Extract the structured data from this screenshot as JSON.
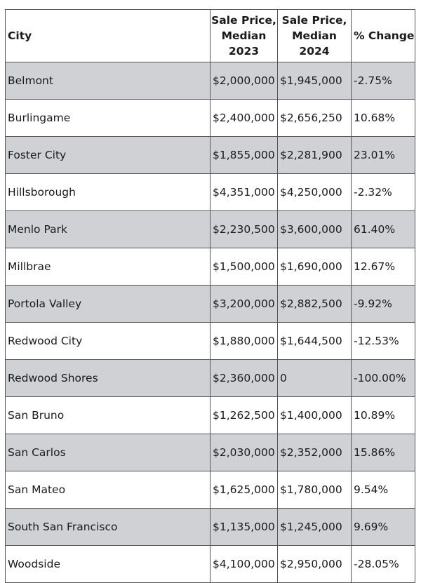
{
  "table": {
    "headers": {
      "city": "City",
      "price_2023": "Sale Price, Median 2023",
      "price_2024": "Sale Price, Median 2024",
      "change": "% Change"
    },
    "rows": [
      {
        "city": "Belmont",
        "price_2023": "$2,000,000",
        "price_2024": "$1,945,000",
        "change": "-2.75%"
      },
      {
        "city": "Burlingame",
        "price_2023": "$2,400,000",
        "price_2024": "$2,656,250",
        "change": "10.68%"
      },
      {
        "city": "Foster City",
        "price_2023": "$1,855,000",
        "price_2024": "$2,281,900",
        "change": "23.01%"
      },
      {
        "city": "Hillsborough",
        "price_2023": "$4,351,000",
        "price_2024": "$4,250,000",
        "change": "-2.32%"
      },
      {
        "city": "Menlo Park",
        "price_2023": "$2,230,500",
        "price_2024": "$3,600,000",
        "change": "61.40%"
      },
      {
        "city": "Millbrae",
        "price_2023": "$1,500,000",
        "price_2024": "$1,690,000",
        "change": "12.67%"
      },
      {
        "city": "Portola Valley",
        "price_2023": "$3,200,000",
        "price_2024": "$2,882,500",
        "change": "-9.92%"
      },
      {
        "city": "Redwood City",
        "price_2023": "$1,880,000",
        "price_2024": "$1,644,500",
        "change": "-12.53%"
      },
      {
        "city": "Redwood Shores",
        "price_2023": "$2,360,000",
        "price_2024": "0",
        "change": "-100.00%"
      },
      {
        "city": "San Bruno",
        "price_2023": "$1,262,500",
        "price_2024": "$1,400,000",
        "change": "10.89%"
      },
      {
        "city": "San Carlos",
        "price_2023": "$2,030,000",
        "price_2024": "$2,352,000",
        "change": "15.86%"
      },
      {
        "city": "San Mateo",
        "price_2023": "$1,625,000",
        "price_2024": "$1,780,000",
        "change": "9.54%"
      },
      {
        "city": "South San Francisco",
        "price_2023": "$1,135,000",
        "price_2024": "$1,245,000",
        "change": "9.69%"
      },
      {
        "city": "Woodside",
        "price_2023": "$4,100,000",
        "price_2024": "$2,950,000",
        "change": "-28.05%"
      }
    ]
  },
  "colors": {
    "shaded_row": "#d0d1d5",
    "border": "#555555",
    "text": "#1a1a1a"
  }
}
